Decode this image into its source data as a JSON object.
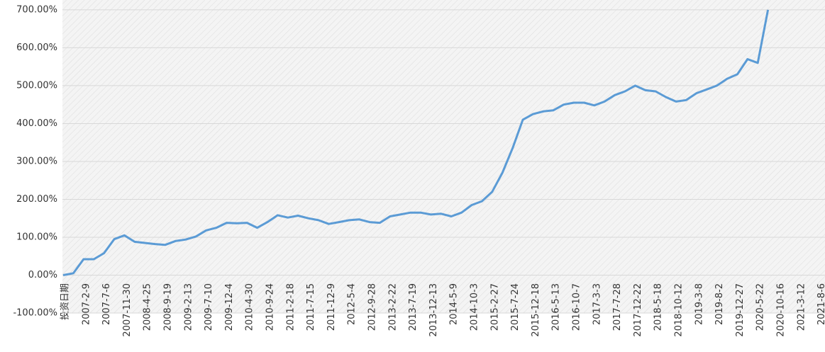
{
  "chart_data": {
    "type": "line",
    "x_label": "投资日期",
    "categories": [
      null,
      null,
      "2007-2-9",
      null,
      "2007-7-6",
      null,
      "2007-11-30",
      null,
      "2008-4-25",
      null,
      "2008-9-19",
      null,
      "2009-2-13",
      null,
      "2009-7-10",
      null,
      "2009-12-4",
      null,
      "2010-4-30",
      null,
      "2010-9-24",
      null,
      "2011-2-18",
      null,
      "2011-7-15",
      null,
      "2011-12-9",
      null,
      "2012-5-4",
      null,
      "2012-9-28",
      null,
      "2013-2-22",
      null,
      "2013-7-19",
      null,
      "2013-12-13",
      null,
      "2014-5-9",
      null,
      "2014-10-3",
      null,
      "2015-2-27",
      null,
      "2015-7-24",
      null,
      "2015-12-18",
      null,
      "2016-5-13",
      null,
      "2016-10-7",
      null,
      "2017-3-3",
      null,
      "2017-7-28",
      null,
      "2017-12-22",
      null,
      "2018-5-18",
      null,
      "2018-10-12",
      null,
      "2019-3-8",
      null,
      "2019-8-2",
      null,
      "2019-12-27",
      null,
      "2020-5-22",
      null,
      "2020-10-16",
      null,
      "2021-3-12",
      null,
      "2021-8-6"
    ],
    "series": [
      {
        "color": "#5b9bd5",
        "values": [
          0,
          5,
          42,
          42,
          58,
          95,
          105,
          88,
          85,
          82,
          80,
          90,
          94,
          102,
          118,
          125,
          138,
          137,
          138,
          125,
          140,
          158,
          152,
          157,
          150,
          145,
          135,
          140,
          145,
          147,
          140,
          138,
          155,
          160,
          165,
          165,
          160,
          162,
          155,
          165,
          185,
          195,
          220,
          270,
          335,
          410,
          425,
          432,
          435,
          450,
          455,
          455,
          448,
          458,
          475,
          485,
          500,
          488,
          485,
          470,
          458,
          462,
          480,
          490,
          500,
          518,
          530,
          570,
          560,
          700,
          null,
          null,
          null,
          null,
          null
        ]
      }
    ],
    "ylim": [
      -100,
      726
    ],
    "yticks": [
      {
        "value": -100,
        "label": "-100.00%"
      },
      {
        "value": 0,
        "label": "0.00%"
      },
      {
        "value": 100,
        "label": "100.00%"
      },
      {
        "value": 200,
        "label": "200.00%"
      },
      {
        "value": 300,
        "label": "300.00%"
      },
      {
        "value": 400,
        "label": "400.00%"
      },
      {
        "value": 500,
        "label": "500.00%"
      },
      {
        "value": 600,
        "label": "600.00%"
      },
      {
        "value": 700,
        "label": "700.00%"
      }
    ],
    "grid": true
  }
}
